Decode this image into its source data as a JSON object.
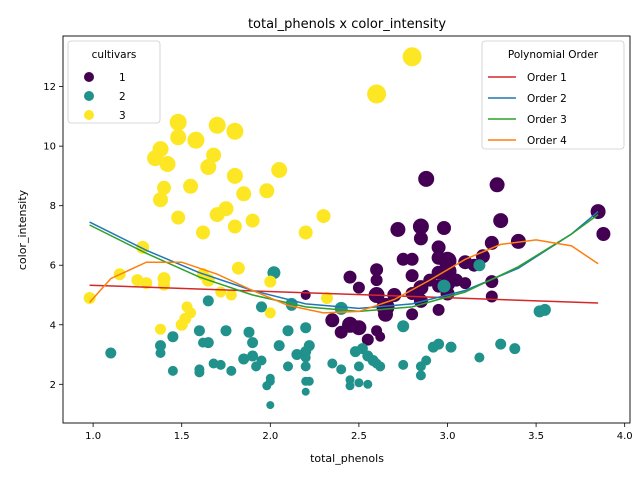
{
  "chart_data": {
    "type": "scatter",
    "title": "total_phenols x color_intensity",
    "xlabel": "total_phenols",
    "ylabel": "color_intensity",
    "xlim": [
      0.83,
      4.03
    ],
    "ylim": [
      0.7,
      13.7
    ],
    "xticks": [
      "1.0",
      "1.5",
      "2.0",
      "2.5",
      "3.0",
      "3.5",
      "4.0"
    ],
    "yticks": [
      "2",
      "4",
      "6",
      "8",
      "10",
      "12"
    ],
    "grid": false,
    "legends": [
      {
        "title": "cultivars",
        "placement": "top-left",
        "entries": [
          {
            "label": "1",
            "color": "#440154"
          },
          {
            "label": "2",
            "color": "#21918c"
          },
          {
            "label": "3",
            "color": "#fde725"
          }
        ]
      },
      {
        "title": "Polynomial Order",
        "placement": "top-right",
        "entries": [
          {
            "label": "Order 1",
            "color": "#d62728"
          },
          {
            "label": "Order 2",
            "color": "#1f77b4"
          },
          {
            "label": "Order 3",
            "color": "#2ca02c"
          },
          {
            "label": "Order 4",
            "color": "#ff7f0e"
          }
        ]
      }
    ],
    "series": [
      {
        "name": "1",
        "color": "#440154",
        "points": [
          [
            2.2,
            5.0
          ],
          [
            2.35,
            4.15
          ],
          [
            2.4,
            3.75
          ],
          [
            2.45,
            4.0
          ],
          [
            2.5,
            3.9
          ],
          [
            2.45,
            5.6
          ],
          [
            2.5,
            5.25
          ],
          [
            2.55,
            3.5
          ],
          [
            2.6,
            5.85
          ],
          [
            2.6,
            5.5
          ],
          [
            2.6,
            5.0
          ],
          [
            2.6,
            3.8
          ],
          [
            2.62,
            3.6
          ],
          [
            2.65,
            4.6
          ],
          [
            2.65,
            4.35
          ],
          [
            2.7,
            5.0
          ],
          [
            2.72,
            7.2
          ],
          [
            2.75,
            6.2
          ],
          [
            2.8,
            6.2
          ],
          [
            2.8,
            5.65
          ],
          [
            2.8,
            5.05
          ],
          [
            2.8,
            4.35
          ],
          [
            2.85,
            7.3
          ],
          [
            2.85,
            6.9
          ],
          [
            2.85,
            5.25
          ],
          [
            2.85,
            4.8
          ],
          [
            2.88,
            8.9
          ],
          [
            2.9,
            5.5
          ],
          [
            2.95,
            6.6
          ],
          [
            2.95,
            6.25
          ],
          [
            2.95,
            5.75
          ],
          [
            2.95,
            5.3
          ],
          [
            2.95,
            4.5
          ],
          [
            2.98,
            7.25
          ],
          [
            3.0,
            6.15
          ],
          [
            3.0,
            5.8
          ],
          [
            3.0,
            5.4
          ],
          [
            3.0,
            5.05
          ],
          [
            3.05,
            5.5
          ],
          [
            3.1,
            6.1
          ],
          [
            3.1,
            5.4
          ],
          [
            3.15,
            6.0
          ],
          [
            3.2,
            6.3
          ],
          [
            3.25,
            6.75
          ],
          [
            3.25,
            5.45
          ],
          [
            3.25,
            4.95
          ],
          [
            3.28,
            8.7
          ],
          [
            3.3,
            7.5
          ],
          [
            3.4,
            6.8
          ],
          [
            3.85,
            7.8
          ],
          [
            3.88,
            7.05
          ]
        ],
        "sizes": [
          10,
          14,
          13,
          16,
          15,
          13,
          12,
          12,
          13,
          12,
          16,
          11,
          10,
          18,
          15,
          14,
          15,
          13,
          13,
          13,
          13,
          12,
          16,
          14,
          15,
          14,
          16,
          13,
          14,
          14,
          14,
          13,
          12,
          14,
          18,
          18,
          16,
          14,
          13,
          14,
          12,
          13,
          14,
          14,
          13,
          12,
          15,
          15,
          15,
          15,
          14
        ]
      },
      {
        "name": "2",
        "color": "#21918c",
        "points": [
          [
            1.1,
            3.05
          ],
          [
            1.38,
            3.3
          ],
          [
            1.38,
            3.05
          ],
          [
            1.45,
            3.6
          ],
          [
            1.45,
            2.45
          ],
          [
            1.6,
            2.5
          ],
          [
            1.6,
            2.4
          ],
          [
            1.6,
            3.8
          ],
          [
            1.62,
            3.4
          ],
          [
            1.65,
            3.4
          ],
          [
            1.65,
            4.8
          ],
          [
            1.68,
            2.7
          ],
          [
            1.72,
            2.65
          ],
          [
            1.75,
            3.8
          ],
          [
            1.78,
            2.45
          ],
          [
            1.85,
            2.85
          ],
          [
            1.88,
            3.75
          ],
          [
            1.9,
            2.95
          ],
          [
            1.9,
            3.4
          ],
          [
            1.92,
            2.6
          ],
          [
            1.95,
            2.8
          ],
          [
            1.95,
            4.6
          ],
          [
            1.98,
            1.95
          ],
          [
            2.0,
            2.1
          ],
          [
            2.0,
            2.2
          ],
          [
            2.0,
            1.3
          ],
          [
            2.02,
            5.75
          ],
          [
            2.05,
            3.3
          ],
          [
            2.1,
            2.6
          ],
          [
            2.1,
            3.8
          ],
          [
            2.12,
            4.7
          ],
          [
            2.12,
            4.65
          ],
          [
            2.15,
            3.0
          ],
          [
            2.2,
            3.9
          ],
          [
            2.2,
            3.1
          ],
          [
            2.2,
            2.9
          ],
          [
            2.2,
            2.6
          ],
          [
            2.2,
            2.1
          ],
          [
            2.2,
            1.75
          ],
          [
            2.22,
            2.1
          ],
          [
            2.22,
            3.3
          ],
          [
            2.35,
            2.7
          ],
          [
            2.4,
            4.55
          ],
          [
            2.4,
            2.5
          ],
          [
            2.45,
            2.15
          ],
          [
            2.45,
            1.95
          ],
          [
            2.48,
            3.1
          ],
          [
            2.5,
            2.6
          ],
          [
            2.5,
            2.05
          ],
          [
            2.52,
            3.2
          ],
          [
            2.55,
            2.95
          ],
          [
            2.55,
            2.0
          ],
          [
            2.58,
            2.8
          ],
          [
            2.6,
            2.7
          ],
          [
            2.62,
            2.6
          ],
          [
            2.75,
            3.95
          ],
          [
            2.75,
            2.65
          ],
          [
            2.85,
            2.6
          ],
          [
            2.85,
            2.3
          ],
          [
            2.88,
            2.8
          ],
          [
            2.92,
            3.25
          ],
          [
            2.95,
            3.35
          ],
          [
            2.98,
            5.3
          ],
          [
            3.02,
            3.25
          ],
          [
            3.18,
            2.9
          ],
          [
            3.18,
            6.0
          ],
          [
            3.3,
            3.35
          ],
          [
            3.38,
            3.2
          ],
          [
            3.52,
            4.45
          ],
          [
            3.55,
            4.5
          ]
        ],
        "sizes": [
          11,
          11,
          10,
          11,
          10,
          10,
          10,
          11,
          10,
          11,
          11,
          10,
          10,
          11,
          10,
          11,
          11,
          11,
          11,
          10,
          10,
          11,
          9,
          9,
          9,
          8,
          13,
          11,
          10,
          11,
          12,
          11,
          11,
          11,
          11,
          10,
          10,
          9,
          8,
          9,
          11,
          10,
          13,
          10,
          9,
          9,
          11,
          10,
          9,
          11,
          11,
          9,
          11,
          10,
          10,
          12,
          10,
          10,
          10,
          10,
          11,
          11,
          13,
          11,
          10,
          12,
          11,
          11,
          12,
          12
        ]
      },
      {
        "name": "3",
        "color": "#fde725",
        "points": [
          [
            0.98,
            4.9
          ],
          [
            1.15,
            5.7
          ],
          [
            1.25,
            5.5
          ],
          [
            1.28,
            6.6
          ],
          [
            1.3,
            5.4
          ],
          [
            1.35,
            9.6
          ],
          [
            1.38,
            8.2
          ],
          [
            1.38,
            9.9
          ],
          [
            1.38,
            3.85
          ],
          [
            1.4,
            5.55
          ],
          [
            1.4,
            5.35
          ],
          [
            1.4,
            8.6
          ],
          [
            1.42,
            9.4
          ],
          [
            1.48,
            10.8
          ],
          [
            1.48,
            10.3
          ],
          [
            1.48,
            7.6
          ],
          [
            1.5,
            4.0
          ],
          [
            1.52,
            4.2
          ],
          [
            1.53,
            4.6
          ],
          [
            1.55,
            8.65
          ],
          [
            1.55,
            4.4
          ],
          [
            1.58,
            10.2
          ],
          [
            1.62,
            7.1
          ],
          [
            1.62,
            5.7
          ],
          [
            1.65,
            9.3
          ],
          [
            1.65,
            5.5
          ],
          [
            1.68,
            9.7
          ],
          [
            1.7,
            10.7
          ],
          [
            1.7,
            7.7
          ],
          [
            1.72,
            5.1
          ],
          [
            1.75,
            7.9
          ],
          [
            1.78,
            5.0
          ],
          [
            1.8,
            10.5
          ],
          [
            1.8,
            9.0
          ],
          [
            1.8,
            7.3
          ],
          [
            1.82,
            5.9
          ],
          [
            1.85,
            8.4
          ],
          [
            1.9,
            7.5
          ],
          [
            1.98,
            8.5
          ],
          [
            2.0,
            5.45
          ],
          [
            2.0,
            4.4
          ],
          [
            2.05,
            9.2
          ],
          [
            2.2,
            7.1
          ],
          [
            2.3,
            7.65
          ],
          [
            2.32,
            4.9
          ],
          [
            2.6,
            11.75
          ],
          [
            2.8,
            13.0
          ]
        ],
        "sizes": [
          12,
          12,
          12,
          13,
          12,
          16,
          15,
          16,
          11,
          13,
          12,
          14,
          16,
          17,
          16,
          14,
          12,
          12,
          11,
          15,
          11,
          17,
          14,
          12,
          16,
          13,
          15,
          17,
          15,
          11,
          15,
          11,
          17,
          16,
          14,
          13,
          15,
          14,
          15,
          12,
          11,
          16,
          14,
          14,
          12,
          19,
          19
        ]
      }
    ],
    "fits": [
      {
        "name": "Order 1",
        "color": "#d62728",
        "x": [
          0.98,
          3.85
        ],
        "y": [
          5.33,
          4.73
        ]
      },
      {
        "name": "Order 2",
        "color": "#1f77b4",
        "x": [
          0.98,
          1.3,
          1.6,
          1.9,
          2.2,
          2.5,
          2.8,
          3.1,
          3.4,
          3.7,
          3.85
        ],
        "y": [
          7.45,
          6.5,
          5.75,
          5.15,
          4.7,
          4.55,
          4.7,
          5.15,
          5.9,
          7.05,
          7.8
        ]
      },
      {
        "name": "Order 3",
        "color": "#2ca02c",
        "x": [
          0.98,
          1.3,
          1.6,
          1.9,
          2.2,
          2.5,
          2.8,
          3.1,
          3.4,
          3.7,
          3.85
        ],
        "y": [
          7.35,
          6.4,
          5.6,
          5.0,
          4.6,
          4.45,
          4.6,
          5.1,
          5.95,
          7.05,
          7.7
        ]
      },
      {
        "name": "Order 4",
        "color": "#ff7f0e",
        "x": [
          0.98,
          1.1,
          1.3,
          1.5,
          1.7,
          1.9,
          2.1,
          2.3,
          2.5,
          2.7,
          2.9,
          3.1,
          3.3,
          3.5,
          3.7,
          3.85
        ],
        "y": [
          4.75,
          5.55,
          6.1,
          6.1,
          5.7,
          5.15,
          4.65,
          4.4,
          4.45,
          4.85,
          5.5,
          6.2,
          6.7,
          6.85,
          6.65,
          6.05
        ]
      }
    ]
  }
}
